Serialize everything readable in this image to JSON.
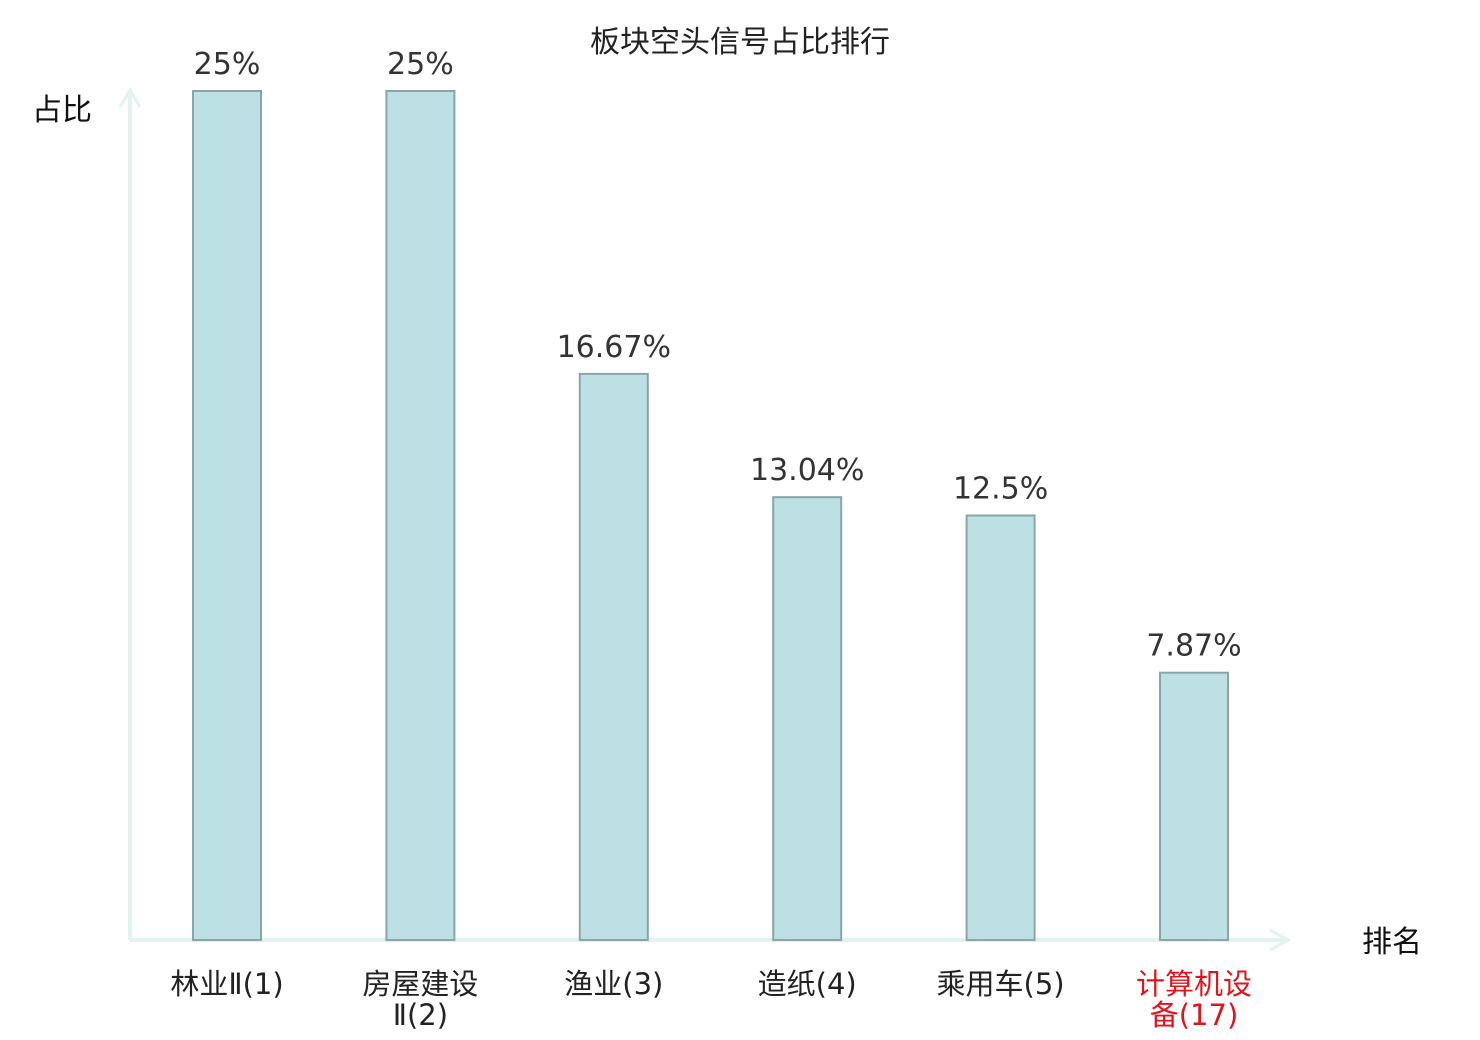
{
  "chart_data": {
    "type": "bar",
    "title": "板块空头信号占比排行",
    "ylabel": "占比",
    "xlabel": "排名",
    "categories": [
      [
        "林业Ⅱ(1)"
      ],
      [
        "房屋建设",
        "Ⅱ(2)"
      ],
      [
        "渔业(3)"
      ],
      [
        "造纸(4)"
      ],
      [
        "乘用车(5)"
      ],
      [
        "计算机设",
        "备(17)"
      ]
    ],
    "values": [
      25,
      25,
      16.67,
      13.04,
      12.5,
      7.87
    ],
    "value_labels": [
      "25%",
      "25%",
      "16.67%",
      "13.04%",
      "12.5%",
      "7.87%"
    ],
    "highlight_index": 5,
    "ylim": [
      0,
      25
    ],
    "grid": false,
    "colors": {
      "bar_fill": "#bce0e3",
      "bar_stroke": "#8aa5a8",
      "axis": "#e0f3f1",
      "highlight_text": "#e0141c"
    }
  }
}
